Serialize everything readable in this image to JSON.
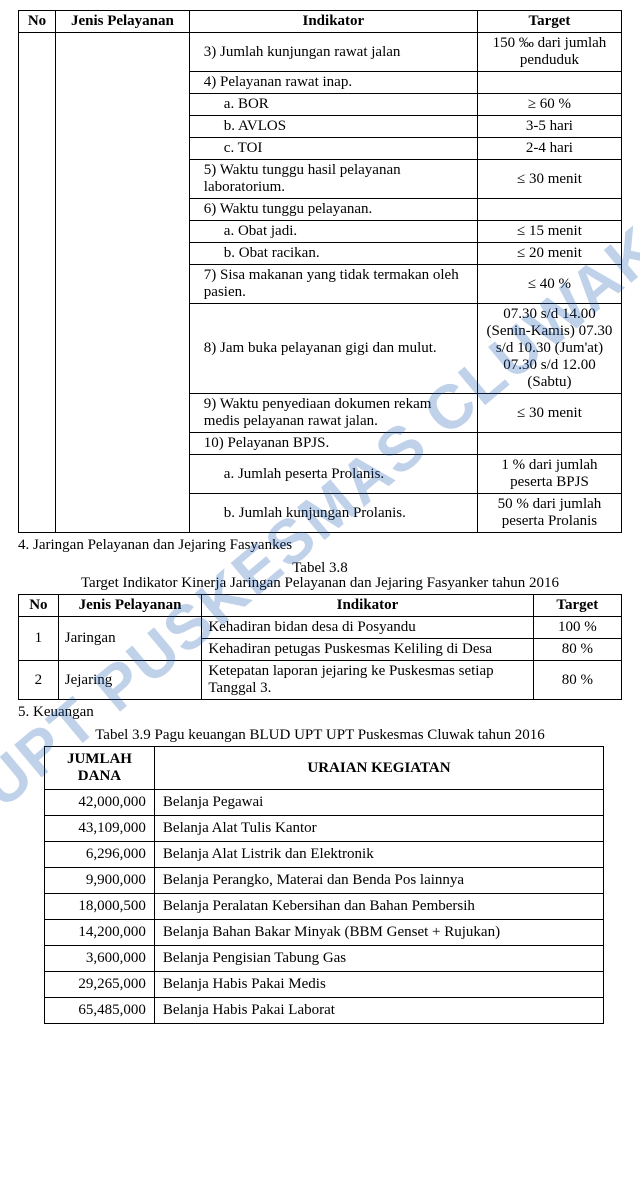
{
  "watermark": "UPT PUSKESMAS CLUWAK",
  "table1": {
    "headers": {
      "no": "No",
      "jenis": "Jenis Pelayanan",
      "indikator": "Indikator",
      "target": "Target"
    },
    "rows": [
      {
        "ind": "3)  Jumlah kunjungan rawat jalan",
        "tgt": "150 ‰ dari jumlah penduduk",
        "cls": "ind1"
      },
      {
        "ind": "4)  Pelayanan rawat inap.",
        "tgt": "",
        "cls": "ind1"
      },
      {
        "ind": "a.   BOR",
        "tgt": "≥ 60 %",
        "cls": "ind2"
      },
      {
        "ind": "b.   AVLOS",
        "tgt": "3-5 hari",
        "cls": "ind2"
      },
      {
        "ind": "c.   TOI",
        "tgt": "2-4 hari",
        "cls": "ind2"
      },
      {
        "ind": "5)  Waktu tunggu hasil pelayanan laboratorium.",
        "tgt": "≤ 30 menit",
        "cls": "ind1"
      },
      {
        "ind": "6)  Waktu tunggu pelayanan.",
        "tgt": "",
        "cls": "ind1"
      },
      {
        "ind": "a.   Obat jadi.",
        "tgt": "≤ 15 menit",
        "cls": "ind2"
      },
      {
        "ind": "b.   Obat racikan.",
        "tgt": "≤ 20 menit",
        "cls": "ind2"
      },
      {
        "ind": "7)  Sisa makanan yang tidak termakan oleh pasien.",
        "tgt": "≤ 40 %",
        "cls": "ind1"
      },
      {
        "ind": "8)  Jam buka pelayanan gigi dan mulut.",
        "tgt": "07.30 s/d 14.00 (Senin-Kamis) 07.30 s/d 10.30 (Jum'at) 07.30 s/d 12.00 (Sabtu)",
        "cls": "ind1"
      },
      {
        "ind": "9)  Waktu penyediaan dokumen rekam medis pelayanan rawat jalan.",
        "tgt": "≤ 30 menit",
        "cls": "ind1"
      },
      {
        "ind": "10) Pelayanan BPJS.",
        "tgt": "",
        "cls": "ind1"
      },
      {
        "ind": "a.   Jumlah peserta Prolanis.",
        "tgt": "1 % dari jumlah peserta BPJS",
        "cls": "ind2"
      },
      {
        "ind": "b.   Jumlah kunjungan Prolanis.",
        "tgt": "50 % dari jumlah peserta Prolanis",
        "cls": "ind2"
      }
    ]
  },
  "section4": {
    "num": "4.",
    "text": "Jaringan Pelayanan dan Jejaring Fasyankes"
  },
  "table2": {
    "caption1": "Tabel 3.8",
    "caption2": "Target Indikator Kinerja Jaringan Pelayanan dan Jejaring Fasyanker tahun 2016",
    "headers": {
      "no": "No",
      "jenis": "Jenis Pelayanan",
      "indikator": "Indikator",
      "target": "Target"
    },
    "rows": [
      {
        "no": "1",
        "jenis": "Jaringan",
        "ind": "Kehadiran bidan desa di Posyandu",
        "tgt": "100 %",
        "rowspan": 2
      },
      {
        "ind": "Kehadiran petugas Puskesmas Keliling di Desa",
        "tgt": "80 %"
      },
      {
        "no": "2",
        "jenis": "Jejaring",
        "ind": "Ketepatan laporan jejaring ke Puskesmas setiap Tanggal 3.",
        "tgt": "80 %",
        "rowspan": 1
      }
    ]
  },
  "section5": {
    "num": "5.",
    "text": "Keuangan"
  },
  "table3": {
    "caption": "Tabel 3.9 Pagu keuangan BLUD UPT UPT Puskesmas Cluwak tahun 2016",
    "headers": {
      "dana": "JUMLAH DANA",
      "uraian": "URAIAN KEGIATAN"
    },
    "rows": [
      {
        "dana": "42,000,000",
        "uraian": "Belanja Pegawai"
      },
      {
        "dana": "43,109,000",
        "uraian": "Belanja Alat Tulis Kantor"
      },
      {
        "dana": "6,296,000",
        "uraian": "Belanja Alat Listrik dan Elektronik"
      },
      {
        "dana": "9,900,000",
        "uraian": "Belanja Perangko, Materai dan Benda Pos lainnya"
      },
      {
        "dana": "18,000,500",
        "uraian": "Belanja Peralatan Kebersihan dan Bahan Pembersih"
      },
      {
        "dana": "14,200,000",
        "uraian": "Belanja Bahan Bakar Minyak (BBM Genset + Rujukan)"
      },
      {
        "dana": "3,600,000",
        "uraian": "Belanja Pengisian Tabung Gas"
      },
      {
        "dana": "29,265,000",
        "uraian": "Belanja Habis Pakai Medis"
      },
      {
        "dana": "65,485,000",
        "uraian": "Belanja Habis Pakai Laborat"
      }
    ]
  }
}
